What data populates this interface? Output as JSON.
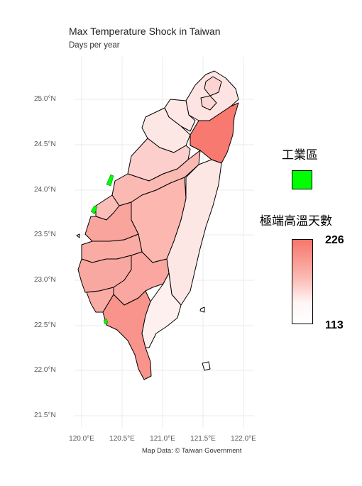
{
  "title": "Max Temperature Shock in Taiwan",
  "subtitle": "Days per year",
  "caption": "Map Data: © Taiwan Government",
  "y_ticks": [
    "25.0°N",
    "24.5°N",
    "24.0°N",
    "23.5°N",
    "23.0°N",
    "22.5°N",
    "22.0°N",
    "21.5°N"
  ],
  "x_ticks": [
    "120.0°E",
    "120.5°E",
    "121.0°E",
    "121.5°E",
    "122.0°E"
  ],
  "legend": {
    "industrial_title": "工業區",
    "industrial_color": "#00ff00",
    "scale_title": "極端高溫天數",
    "scale_max": "226",
    "scale_min": "113",
    "scale_high_color": "#f7766b",
    "scale_low_color": "#ffffff"
  }
}
